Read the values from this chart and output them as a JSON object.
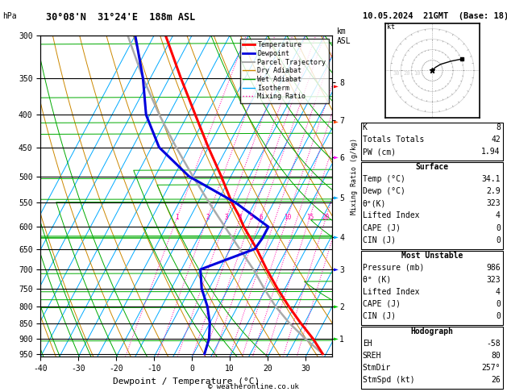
{
  "title_left": "30°08'N  31°24'E  188m ASL",
  "title_right": "10.05.2024  21GMT  (Base: 18)",
  "xlabel": "Dewpoint / Temperature (°C)",
  "ylabel_left": "hPa",
  "bg_color": "#ffffff",
  "isotherm_color": "#00aaff",
  "dry_adiabat_color": "#cc8800",
  "wet_adiabat_color": "#00aa00",
  "mixing_ratio_color": "#ff00aa",
  "temp_color": "#ff0000",
  "dewp_color": "#0000dd",
  "parcel_color": "#aaaaaa",
  "legend_items": [
    {
      "label": "Temperature",
      "color": "#ff0000",
      "lw": 2.0,
      "ls": "solid"
    },
    {
      "label": "Dewpoint",
      "color": "#0000dd",
      "lw": 2.0,
      "ls": "solid"
    },
    {
      "label": "Parcel Trajectory",
      "color": "#aaaaaa",
      "lw": 1.5,
      "ls": "solid"
    },
    {
      "label": "Dry Adiabat",
      "color": "#cc8800",
      "lw": 1.0,
      "ls": "solid"
    },
    {
      "label": "Wet Adiabat",
      "color": "#00aa00",
      "lw": 1.0,
      "ls": "solid"
    },
    {
      "label": "Isotherm",
      "color": "#00aaff",
      "lw": 1.0,
      "ls": "solid"
    },
    {
      "label": "Mixing Ratio",
      "color": "#ff00aa",
      "lw": 1.0,
      "ls": "dotted"
    }
  ],
  "pressure_levels": [
    300,
    350,
    400,
    450,
    500,
    550,
    600,
    650,
    700,
    750,
    800,
    850,
    900,
    950
  ],
  "km_pressures": [
    900,
    800,
    700,
    622,
    540,
    466,
    408,
    356
  ],
  "km_labels": [
    "1",
    "2",
    "3",
    "4",
    "5",
    "6",
    "7",
    "8"
  ],
  "info_box": {
    "K": "8",
    "Totals Totals": "42",
    "PW (cm)": "1.94",
    "Temp_C": "34.1",
    "Dewp_C": "2.9",
    "theta_e_K": "323",
    "Lifted_Index": "4",
    "CAPE_J": "0",
    "CIN_J": "0",
    "Pressure_mb": "986",
    "mu_theta_e_K": "323",
    "mu_Lifted_Index": "4",
    "mu_CAPE_J": "0",
    "mu_CIN_J": "0",
    "EH": "-58",
    "SREH": "80",
    "StmDir": "257°",
    "StmSpd_kt": "26"
  },
  "copyright": "© weatheronline.co.uk",
  "temp_profile": {
    "pressure": [
      950,
      900,
      850,
      800,
      750,
      700,
      650,
      600,
      575,
      550,
      500,
      450,
      400,
      350,
      300
    ],
    "temp": [
      34.1,
      29.5,
      24.0,
      18.5,
      13.0,
      7.5,
      2.0,
      -4.5,
      -7.5,
      -11.0,
      -17.5,
      -25.0,
      -33.0,
      -42.0,
      -52.0
    ]
  },
  "dewp_profile": {
    "pressure": [
      950,
      900,
      850,
      800,
      750,
      700,
      650,
      625,
      600,
      550,
      500,
      450,
      400,
      350,
      300
    ],
    "temp": [
      2.9,
      2.0,
      0.0,
      -3.0,
      -7.0,
      -10.0,
      1.5,
      2.0,
      2.0,
      -10.0,
      -26.0,
      -38.0,
      -46.0,
      -52.0,
      -60.0
    ]
  },
  "parcel_profile": {
    "pressure": [
      950,
      900,
      850,
      800,
      750,
      700,
      650,
      600,
      550,
      500,
      450,
      400,
      350,
      300
    ],
    "temp": [
      34.1,
      27.5,
      21.0,
      15.0,
      9.5,
      4.0,
      -2.5,
      -9.5,
      -17.0,
      -25.0,
      -33.5,
      -42.5,
      -52.0,
      -62.0
    ]
  },
  "pmin": 300,
  "pmax": 960,
  "tmin": -40,
  "tmax": 37,
  "skew_total": 45
}
